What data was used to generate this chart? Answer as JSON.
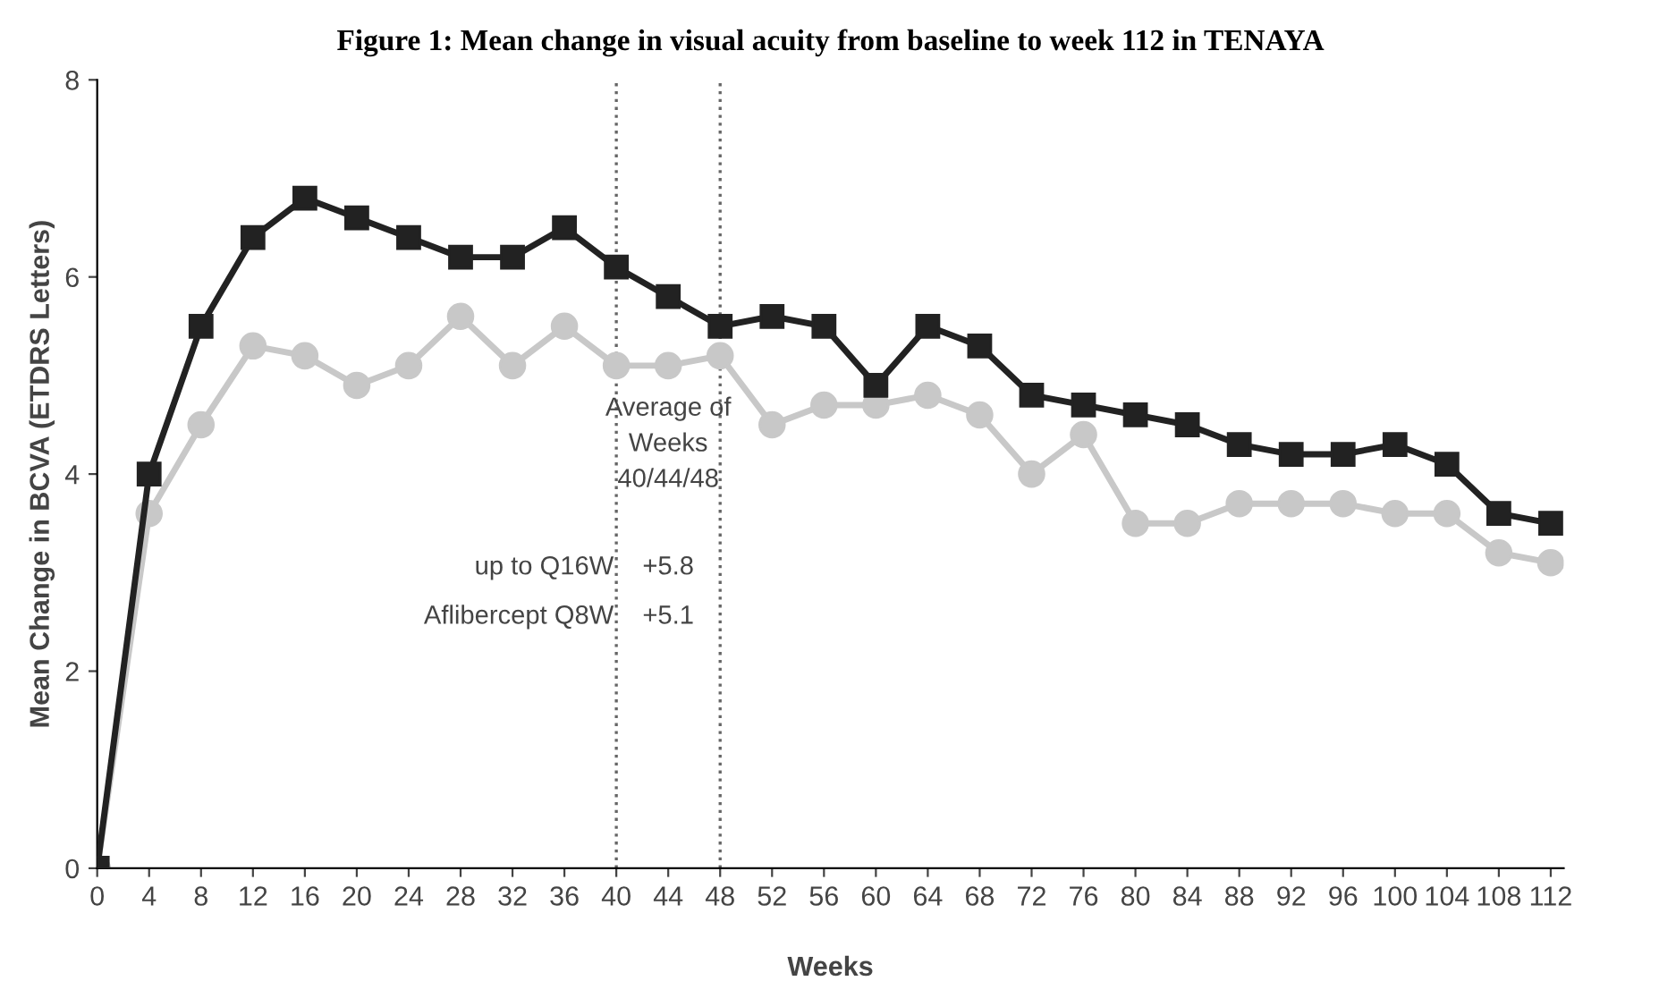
{
  "chart_data": {
    "type": "line",
    "title": "Figure 1: Mean change in visual acuity from baseline to week 112 in TENAYA",
    "xlabel": "Weeks",
    "ylabel": "Mean Change in BCVA (ETDRS Letters)",
    "x": [
      0,
      4,
      8,
      12,
      16,
      20,
      24,
      28,
      32,
      36,
      40,
      44,
      48,
      52,
      56,
      60,
      64,
      68,
      72,
      76,
      80,
      84,
      88,
      92,
      96,
      100,
      104,
      108,
      112
    ],
    "series": [
      {
        "color": "#222222",
        "marker": "square",
        "values": [
          0,
          4.0,
          5.5,
          6.4,
          6.8,
          6.6,
          6.4,
          6.2,
          6.2,
          6.5,
          6.1,
          5.8,
          5.5,
          5.6,
          5.5,
          4.9,
          5.5,
          5.3,
          4.8,
          4.7,
          4.6,
          4.5,
          4.3,
          4.2,
          4.2,
          4.3,
          4.1,
          3.6,
          3.5
        ]
      },
      {
        "color": "#c8c8c8",
        "marker": "circle",
        "values": [
          0,
          3.6,
          4.5,
          5.3,
          5.2,
          4.9,
          5.1,
          5.6,
          5.1,
          5.5,
          5.1,
          5.1,
          5.2,
          4.5,
          4.7,
          4.7,
          4.8,
          4.6,
          4.0,
          4.4,
          3.5,
          3.5,
          3.7,
          3.7,
          3.7,
          3.6,
          3.6,
          3.2,
          3.1
        ]
      }
    ],
    "xlim": [
      0,
      113
    ],
    "ylim": [
      0,
      8
    ],
    "xticks": [
      0,
      4,
      8,
      12,
      16,
      20,
      24,
      28,
      32,
      36,
      40,
      44,
      48,
      52,
      56,
      60,
      64,
      68,
      72,
      76,
      80,
      84,
      88,
      92,
      96,
      100,
      104,
      108,
      112
    ],
    "yticks": [
      0,
      2,
      4,
      6,
      8
    ],
    "ref_lines": [
      {
        "axis": "x",
        "value": 40,
        "color": "#666666",
        "line_style": "dotted"
      },
      {
        "axis": "x",
        "value": 48,
        "color": "#666666",
        "line_style": "dotted"
      }
    ],
    "annotations": [
      "Average of\nWeeks\n40/44/48",
      "up to Q16W",
      "+5.8",
      "Aflibercept Q8W",
      "+5.1"
    ],
    "grid": false,
    "legend": false,
    "line_style": "solid"
  }
}
